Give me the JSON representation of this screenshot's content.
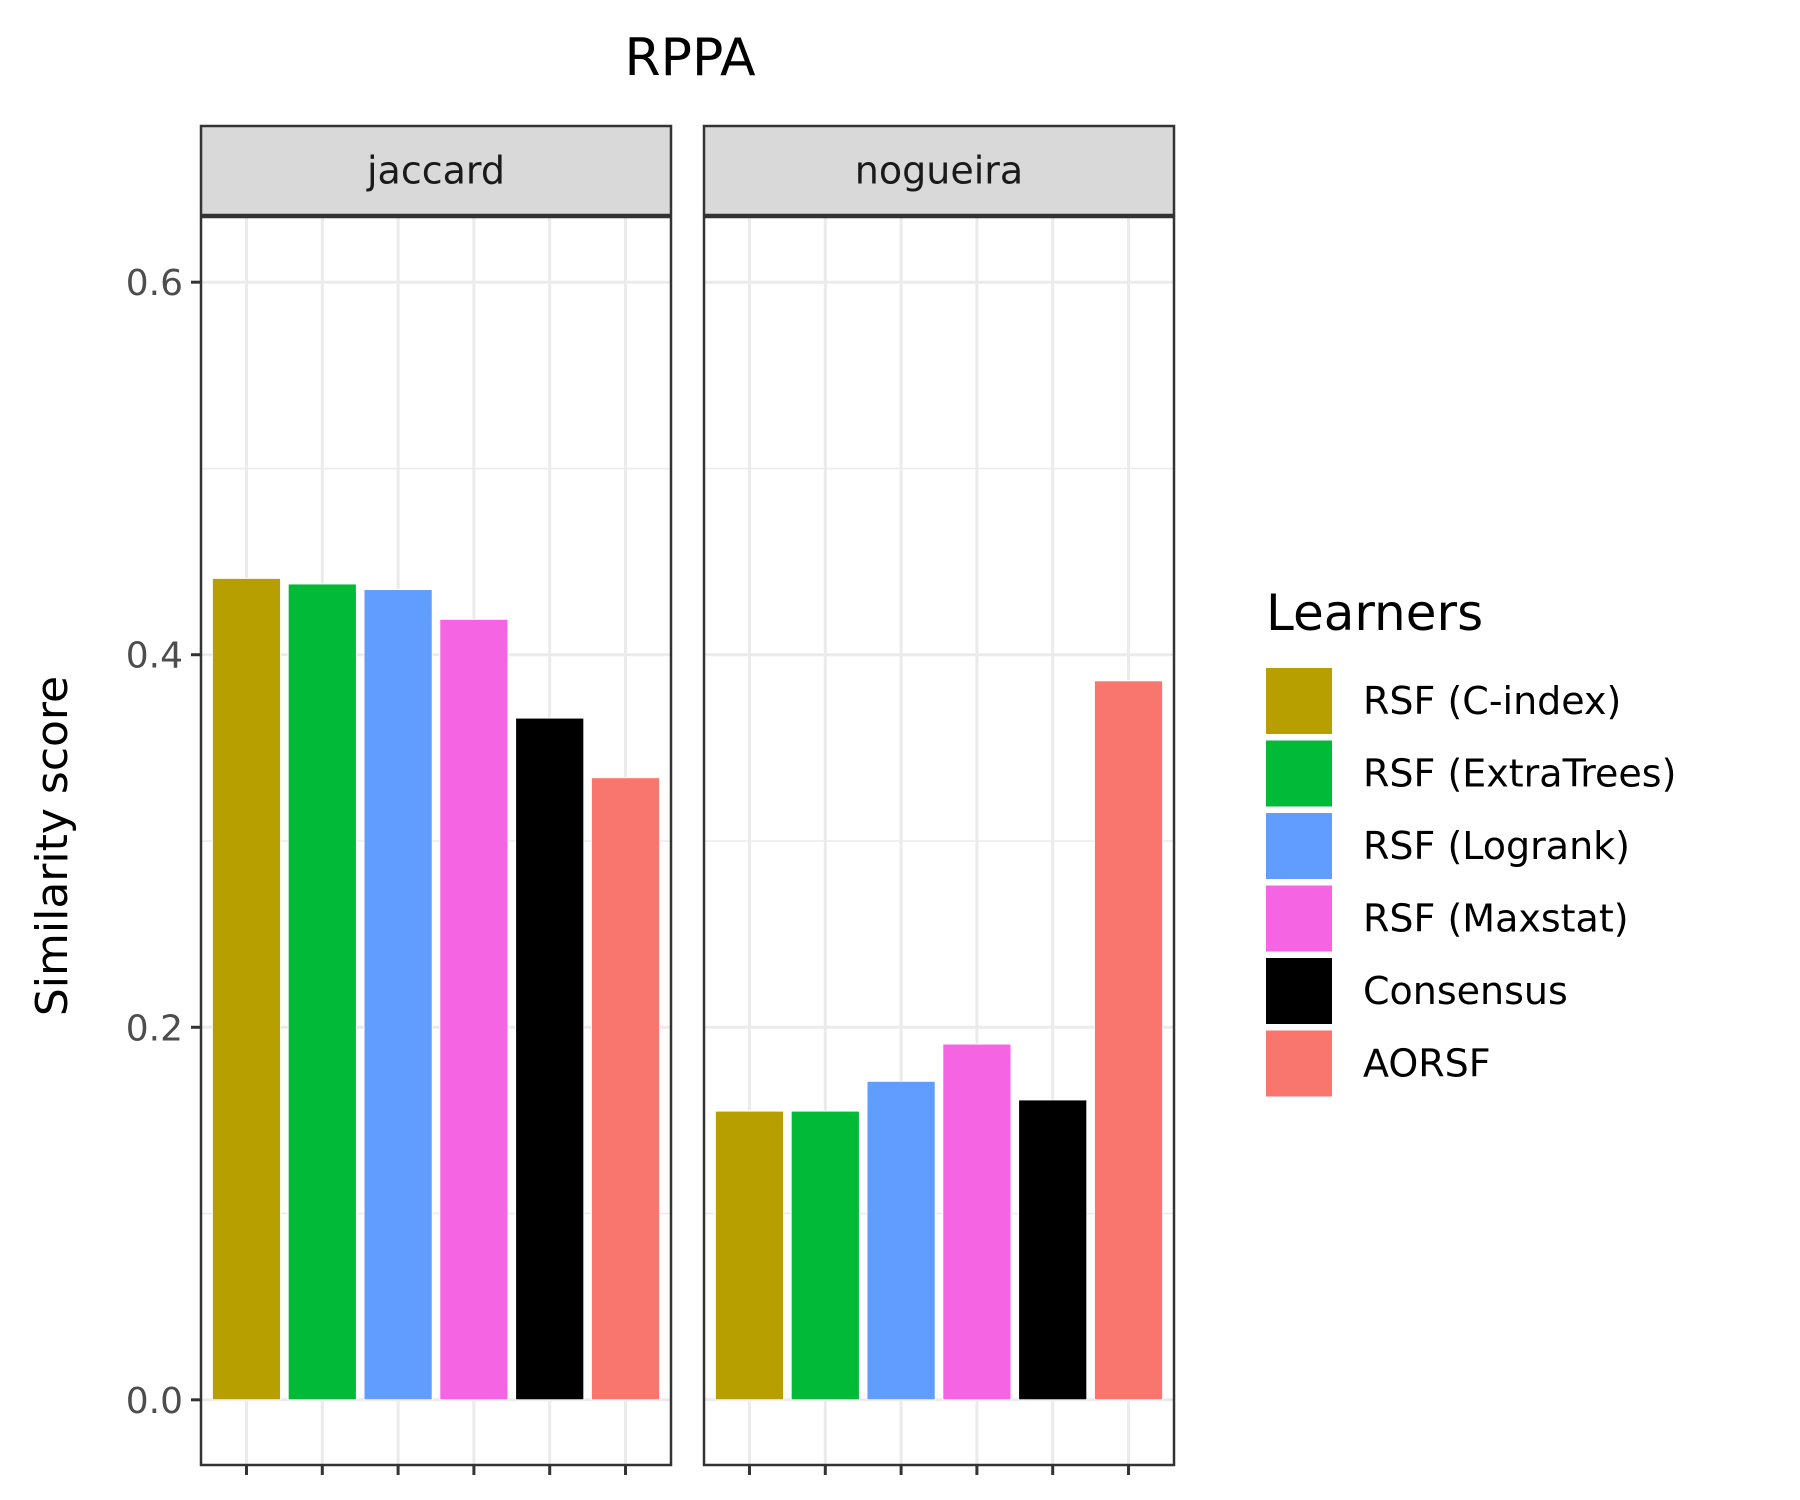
{
  "chart_data": {
    "type": "bar",
    "title": "RPPA",
    "ylabel": "Similarity score",
    "xlabel": "",
    "ylim": [
      -0.035,
      0.635
    ],
    "yticks": [
      0.0,
      0.2,
      0.4,
      0.6
    ],
    "ytick_labels": [
      "0.0",
      "0.2",
      "0.4",
      "0.6"
    ],
    "grid": true,
    "legend": {
      "title": "Learners",
      "placement": "right"
    },
    "categories": [
      "RSF (C-index)",
      "RSF (ExtraTrees)",
      "RSF (Logrank)",
      "RSF (Maxstat)",
      "Consensus",
      "AORSF"
    ],
    "colors": [
      "#B79F00",
      "#00BA38",
      "#619CFF",
      "#F564E3",
      "#000000",
      "#F8766D"
    ],
    "facets": [
      {
        "name": "jaccard",
        "values": [
          0.441,
          0.438,
          0.435,
          0.419,
          0.366,
          0.334
        ]
      },
      {
        "name": "nogueira",
        "values": [
          0.155,
          0.155,
          0.171,
          0.191,
          0.161,
          0.386
        ]
      }
    ]
  }
}
